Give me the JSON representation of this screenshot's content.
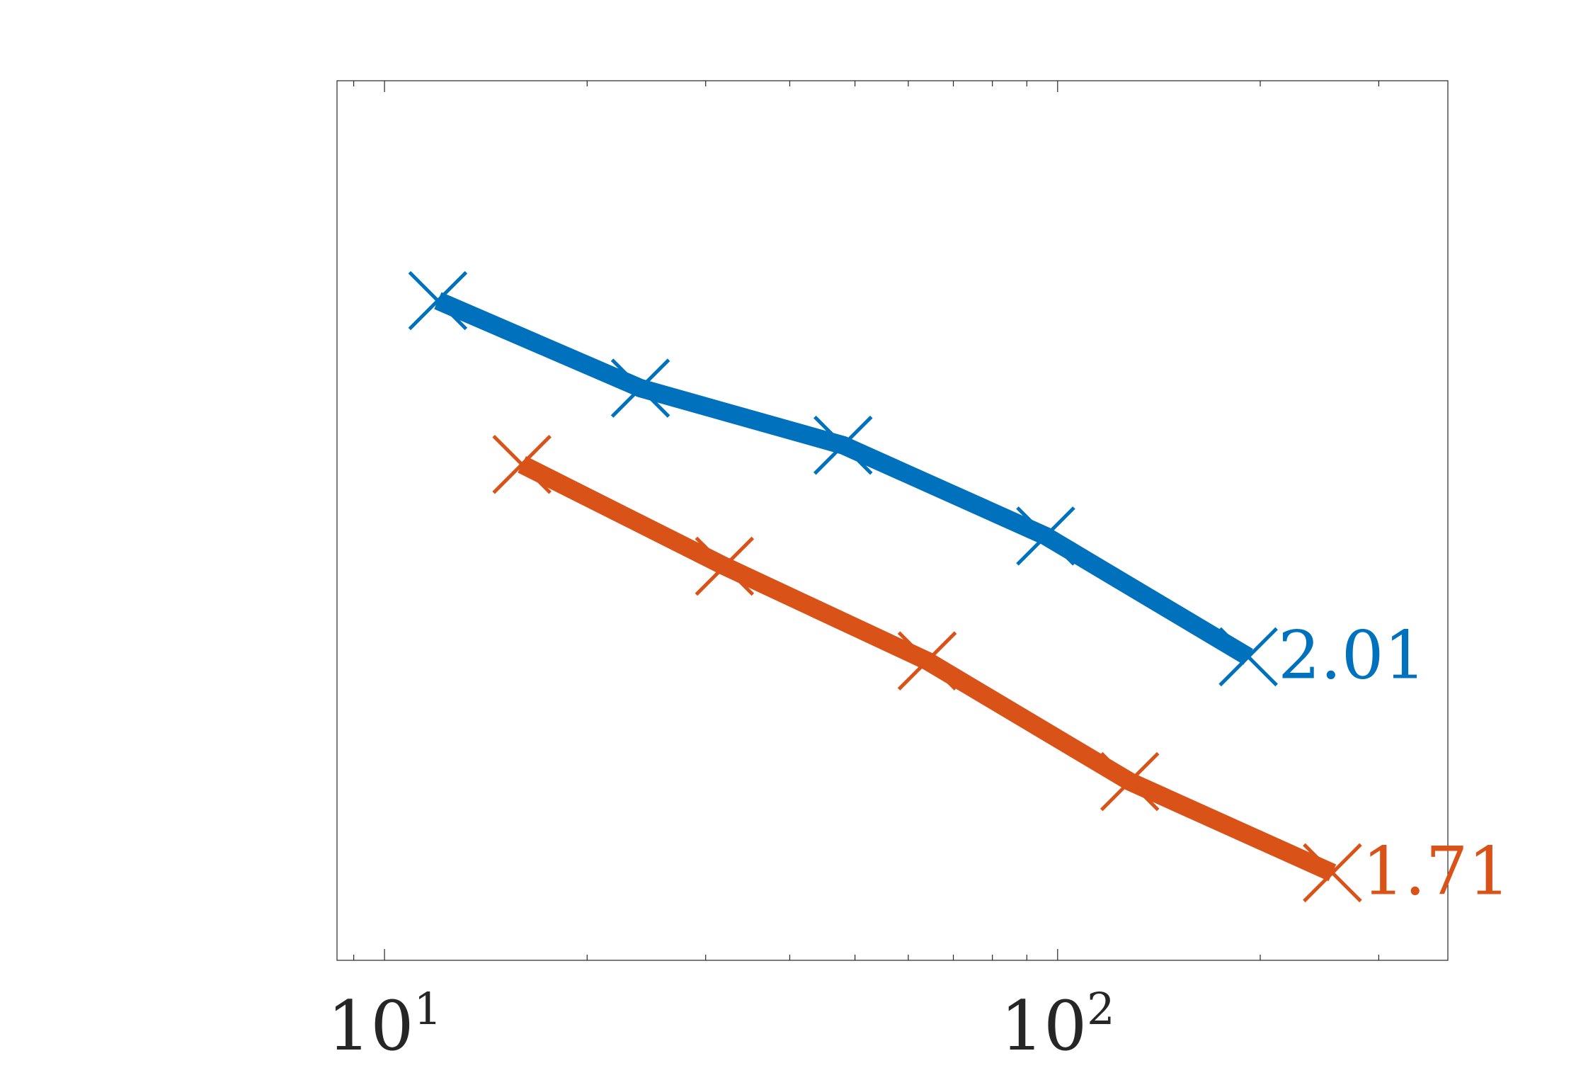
{
  "chart_data": {
    "type": "line",
    "x_scale": "log",
    "y_scale": "log",
    "xlim": [
      8.5,
      380
    ],
    "ylim": [
      0.0001,
      1
    ],
    "x_ticks": [
      {
        "value": 10,
        "base": "10",
        "exp": "1"
      },
      {
        "value": 100,
        "base": "10",
        "exp": "2"
      }
    ],
    "grid": false,
    "legend": "none",
    "series": [
      {
        "color": "#0072BD",
        "x": [
          12,
          24,
          48,
          96,
          192
        ],
        "y": [
          0.1,
          0.04,
          0.022,
          0.0085,
          0.0024
        ],
        "end_label": "2.01"
      },
      {
        "color": "#D95319",
        "x": [
          16,
          32,
          64,
          128,
          256
        ],
        "y": [
          0.018,
          0.0062,
          0.0023,
          0.00065,
          0.00025
        ],
        "end_label": "1.71"
      }
    ]
  }
}
